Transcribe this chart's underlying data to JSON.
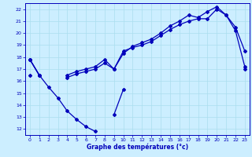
{
  "xlabel": "Graphe des températures (°c)",
  "hours": [
    0,
    1,
    2,
    3,
    4,
    5,
    6,
    7,
    8,
    9,
    10,
    11,
    12,
    13,
    14,
    15,
    16,
    17,
    18,
    19,
    20,
    21,
    22,
    23
  ],
  "line_min": [
    17.8,
    16.5,
    15.5,
    14.6,
    13.5,
    12.8,
    12.2,
    11.8,
    null,
    13.2,
    15.3,
    null,
    null,
    null,
    null,
    null,
    null,
    null,
    null,
    null,
    null,
    null,
    null,
    null
  ],
  "line_trend": [
    16.5,
    null,
    null,
    null,
    null,
    null,
    null,
    null,
    null,
    null,
    null,
    null,
    null,
    null,
    null,
    null,
    null,
    null,
    null,
    null,
    null,
    null,
    null,
    17.0
  ],
  "line_max1": [
    17.8,
    16.5,
    null,
    null,
    16.3,
    16.6,
    16.8,
    17.0,
    17.5,
    17.0,
    18.3,
    18.9,
    19.2,
    19.5,
    20.0,
    20.6,
    21.0,
    21.5,
    21.3,
    21.8,
    22.2,
    21.5,
    20.2,
    17.2
  ],
  "line_max2": [
    17.8,
    16.5,
    null,
    null,
    16.5,
    16.8,
    17.0,
    17.2,
    17.8,
    17.0,
    18.5,
    18.8,
    19.0,
    19.3,
    19.8,
    20.3,
    20.7,
    21.0,
    21.2,
    21.2,
    22.0,
    21.5,
    20.5,
    18.5
  ],
  "bg_color": "#cceeff",
  "grid_color": "#aaddee",
  "line_color": "#0000bb",
  "ylim": [
    11.5,
    22.5
  ],
  "xlim": [
    -0.5,
    23.5
  ],
  "yticks": [
    12,
    13,
    14,
    15,
    16,
    17,
    18,
    19,
    20,
    21,
    22
  ],
  "xticks": [
    0,
    1,
    2,
    3,
    4,
    5,
    6,
    7,
    8,
    9,
    10,
    11,
    12,
    13,
    14,
    15,
    16,
    17,
    18,
    19,
    20,
    21,
    22,
    23
  ]
}
